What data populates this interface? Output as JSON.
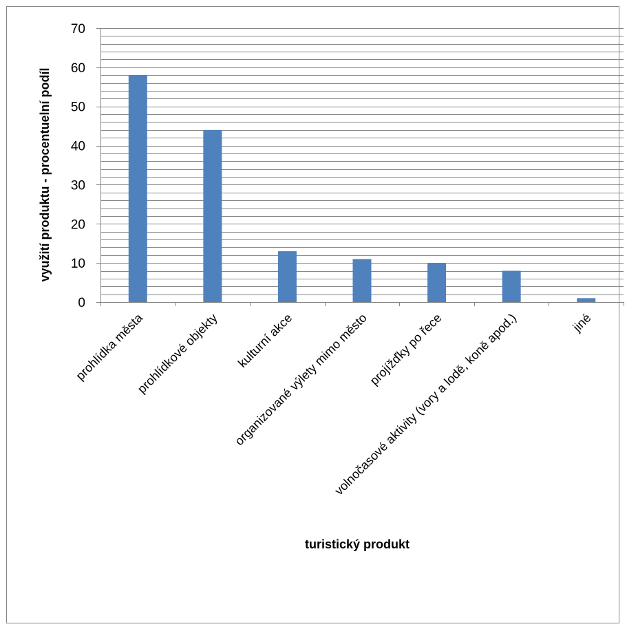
{
  "chart_data": {
    "type": "bar",
    "title": "",
    "xlabel": "turistický produkt",
    "ylabel": "využití produktu - procentuelní podíl",
    "categories": [
      "prohlídka města",
      "prohlídkové objekty",
      "kulturní akce",
      "organizované výlety mimo město",
      "projížďky po řece",
      "volnočasové aktivity (vory a lodě, koně apod.)",
      "jiné"
    ],
    "values": [
      58,
      44,
      13,
      11,
      10,
      8,
      1
    ],
    "ylim": [
      0,
      70
    ],
    "yticks": [
      0,
      10,
      20,
      30,
      40,
      50,
      60,
      70
    ],
    "minor_gridline_step": 2,
    "grid": true,
    "legend": "none",
    "bar_color": "#4f81bd",
    "grid_color": "#868686"
  }
}
